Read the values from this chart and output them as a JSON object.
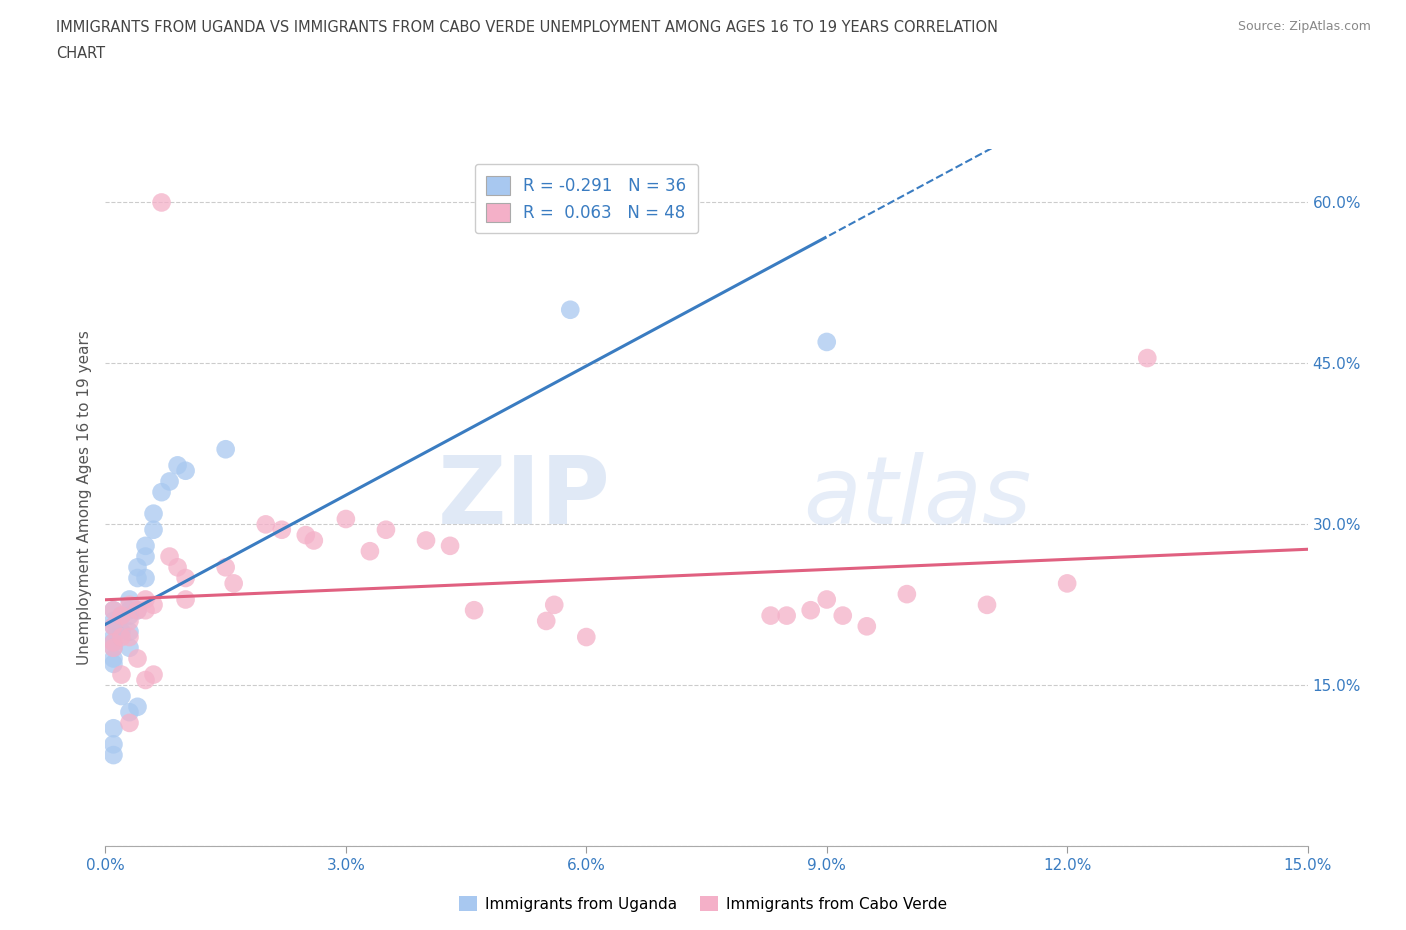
{
  "title_line1": "IMMIGRANTS FROM UGANDA VS IMMIGRANTS FROM CABO VERDE UNEMPLOYMENT AMONG AGES 16 TO 19 YEARS CORRELATION",
  "title_line2": "CHART",
  "source": "Source: ZipAtlas.com",
  "ylabel": "Unemployment Among Ages 16 to 19 years",
  "xlim": [
    0.0,
    0.15
  ],
  "ylim": [
    0.0,
    0.65
  ],
  "xticks": [
    0.0,
    0.03,
    0.06,
    0.09,
    0.12,
    0.15
  ],
  "xticklabels": [
    "0.0%",
    "3.0%",
    "6.0%",
    "9.0%",
    "12.0%",
    "15.0%"
  ],
  "yticks_left": [
    0.0,
    0.15,
    0.3,
    0.45,
    0.6
  ],
  "yticklabels_left": [
    "",
    "",
    "",
    "",
    ""
  ],
  "yticks_right": [
    0.15,
    0.3,
    0.45,
    0.6
  ],
  "yticklabels_right": [
    "15.0%",
    "30.0%",
    "45.0%",
    "60.0%"
  ],
  "legend_uganda": "R = -0.291   N = 36",
  "legend_caboverde": "R =  0.063   N = 48",
  "legend_label1": "Immigrants from Uganda",
  "legend_label2": "Immigrants from Cabo Verde",
  "color_uganda": "#a8c8f0",
  "color_caboverde": "#f4b0c8",
  "color_uganda_line": "#3a7cc1",
  "color_caboverde_line": "#e06080",
  "color_tick_labels": "#3a7cc1",
  "color_title": "#444444",
  "color_source": "#888888",
  "watermark_zip": "ZIP",
  "watermark_atlas": "atlas",
  "grid_color": "#cccccc",
  "R_uganda": -0.291,
  "N_uganda": 36,
  "R_caboverde": 0.063,
  "N_caboverde": 48,
  "uganda_x": [
    0.001,
    0.001,
    0.001,
    0.001,
    0.001,
    0.001,
    0.001,
    0.001,
    0.001,
    0.001,
    0.001,
    0.002,
    0.002,
    0.002,
    0.003,
    0.003,
    0.003,
    0.003,
    0.003,
    0.003,
    0.004,
    0.004,
    0.004,
    0.004,
    0.005,
    0.005,
    0.005,
    0.006,
    0.006,
    0.007,
    0.008,
    0.009,
    0.01,
    0.015,
    0.058,
    0.09
  ],
  "uganda_y": [
    0.22,
    0.21,
    0.205,
    0.195,
    0.19,
    0.185,
    0.175,
    0.17,
    0.11,
    0.095,
    0.085,
    0.215,
    0.2,
    0.14,
    0.23,
    0.22,
    0.215,
    0.2,
    0.185,
    0.125,
    0.26,
    0.25,
    0.22,
    0.13,
    0.28,
    0.27,
    0.25,
    0.31,
    0.295,
    0.33,
    0.34,
    0.355,
    0.35,
    0.37,
    0.5,
    0.47
  ],
  "caboverde_x": [
    0.001,
    0.001,
    0.001,
    0.001,
    0.002,
    0.002,
    0.002,
    0.003,
    0.003,
    0.003,
    0.003,
    0.004,
    0.004,
    0.005,
    0.005,
    0.005,
    0.006,
    0.006,
    0.007,
    0.008,
    0.009,
    0.01,
    0.01,
    0.015,
    0.016,
    0.02,
    0.022,
    0.025,
    0.026,
    0.03,
    0.033,
    0.035,
    0.04,
    0.043,
    0.046,
    0.055,
    0.056,
    0.06,
    0.083,
    0.085,
    0.088,
    0.09,
    0.092,
    0.095,
    0.1,
    0.11,
    0.12,
    0.13
  ],
  "caboverde_y": [
    0.22,
    0.205,
    0.19,
    0.185,
    0.215,
    0.195,
    0.16,
    0.225,
    0.21,
    0.195,
    0.115,
    0.22,
    0.175,
    0.23,
    0.22,
    0.155,
    0.225,
    0.16,
    0.6,
    0.27,
    0.26,
    0.25,
    0.23,
    0.26,
    0.245,
    0.3,
    0.295,
    0.29,
    0.285,
    0.305,
    0.275,
    0.295,
    0.285,
    0.28,
    0.22,
    0.21,
    0.225,
    0.195,
    0.215,
    0.215,
    0.22,
    0.23,
    0.215,
    0.205,
    0.235,
    0.225,
    0.245,
    0.455
  ]
}
